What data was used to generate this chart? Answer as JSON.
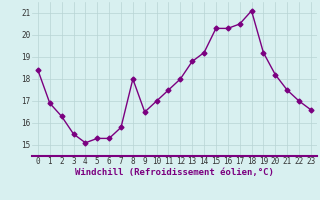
{
  "x": [
    0,
    1,
    2,
    3,
    4,
    5,
    6,
    7,
    8,
    9,
    10,
    11,
    12,
    13,
    14,
    15,
    16,
    17,
    18,
    19,
    20,
    21,
    22,
    23
  ],
  "y": [
    18.4,
    16.9,
    16.3,
    15.5,
    15.1,
    15.3,
    15.3,
    15.8,
    18.0,
    16.5,
    17.0,
    17.5,
    18.0,
    18.8,
    19.2,
    20.3,
    20.3,
    20.5,
    21.1,
    19.2,
    18.2,
    17.5,
    17.0,
    16.6
  ],
  "line_color": "#7b0080",
  "marker": "D",
  "marker_size": 2.5,
  "bg_color": "#d8f0f0",
  "grid_color": "#b8d4d4",
  "axis_color": "#7b0080",
  "title": "Windchill (Refroidissement éolien,°C)",
  "ylim": [
    14.5,
    21.5
  ],
  "yticks": [
    15,
    16,
    17,
    18,
    19,
    20,
    21
  ],
  "xlim": [
    -0.5,
    23.5
  ],
  "xticks": [
    0,
    1,
    2,
    3,
    4,
    5,
    6,
    7,
    8,
    9,
    10,
    11,
    12,
    13,
    14,
    15,
    16,
    17,
    18,
    19,
    20,
    21,
    22,
    23
  ],
  "tick_fontsize": 5.5,
  "xlabel_fontsize": 6.5,
  "line_width": 1.0
}
